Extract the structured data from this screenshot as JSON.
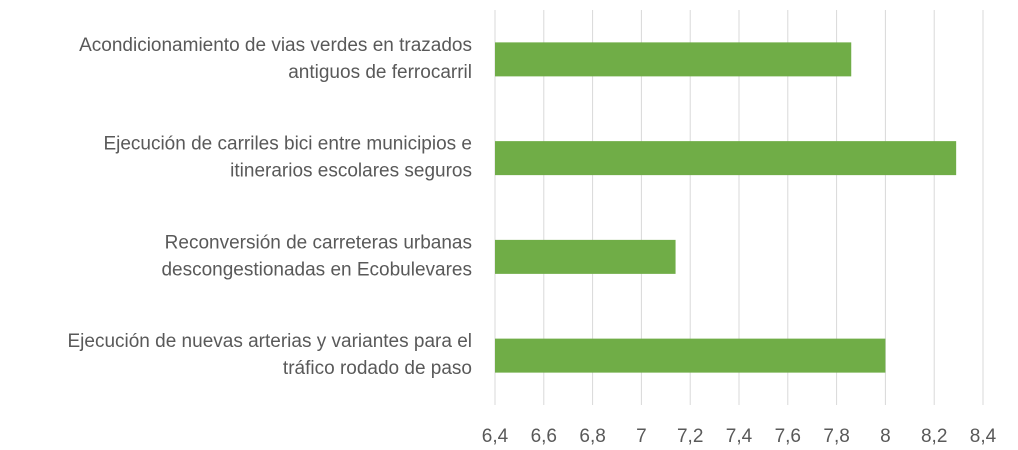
{
  "chart_data": {
    "type": "hbar",
    "categories": [
      [
        "Acondicionamiento de vias verdes en trazados",
        "antiguos de ferrocarril"
      ],
      [
        "Ejecución de carriles bici entre municipios e",
        "itinerarios escolares seguros"
      ],
      [
        "Reconversión de carreteras urbanas",
        "descongestionadas en Ecobulevares"
      ],
      [
        "Ejecución de nuevas arterias y variantes para el",
        "tráfico rodado de paso"
      ]
    ],
    "values": [
      7.86,
      8.29,
      7.14,
      8.0
    ],
    "color": "#70ad47",
    "xlim": [
      6.4,
      8.4
    ],
    "xticks": [
      {
        "value": 6.4,
        "label": "6,4"
      },
      {
        "value": 6.6,
        "label": "6,6"
      },
      {
        "value": 6.8,
        "label": "6,8"
      },
      7,
      {
        "value": 7.2,
        "label": "7,2"
      },
      {
        "value": 7.4,
        "label": "7,4"
      },
      {
        "value": 7.6,
        "label": "7,6"
      },
      {
        "value": 7.8,
        "label": "7,8"
      },
      8,
      {
        "value": 8.2,
        "label": "8,2"
      },
      {
        "value": 8.4,
        "label": "8,4"
      }
    ],
    "grid": true
  }
}
